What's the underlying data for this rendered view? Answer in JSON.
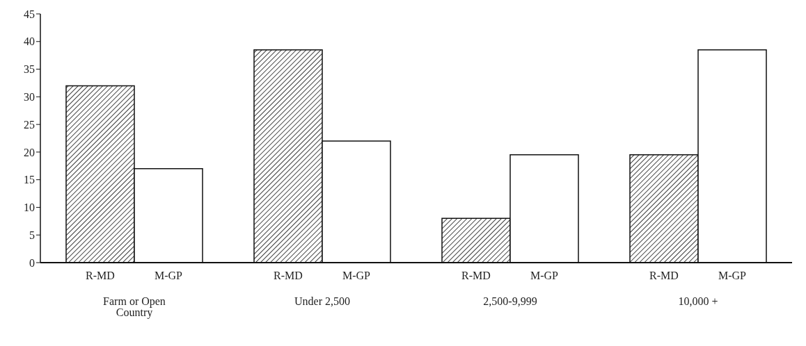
{
  "chart_data": {
    "type": "bar",
    "categories": [
      "Farm or Open Country",
      "Under 2,500",
      "2,500-9,999",
      "10,000 +"
    ],
    "series": [
      {
        "name": "R-MD",
        "color": "#111111",
        "values": [
          32,
          38.5,
          8,
          19.5
        ]
      },
      {
        "name": "M-GP",
        "color": "#ffffff",
        "values": [
          17,
          22,
          19.5,
          38.5
        ]
      }
    ],
    "ylim": [
      0,
      45
    ],
    "yticks": [
      0,
      5,
      10,
      15,
      20,
      25,
      30,
      35,
      40,
      45
    ],
    "grid": false,
    "legend": false
  }
}
